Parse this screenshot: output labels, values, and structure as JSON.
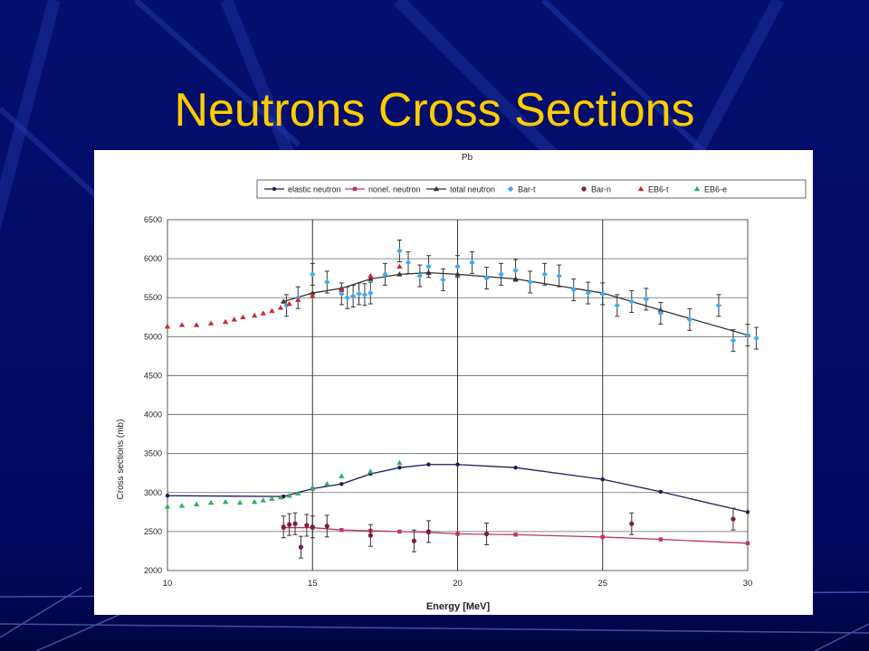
{
  "slide": {
    "title": "Neutrons Cross Sections"
  },
  "chart_data": {
    "type": "scatter",
    "title": "Pb",
    "xlabel": "Energy [MeV]",
    "ylabel": "Cross sections (mb)",
    "xlim": [
      10,
      30
    ],
    "ylim": [
      2000,
      6500
    ],
    "x_ticks": [
      10,
      15,
      20,
      25,
      30
    ],
    "y_ticks": [
      2000,
      2500,
      3000,
      3500,
      4000,
      4500,
      5000,
      5500,
      6000,
      6500
    ],
    "grid": true,
    "legend_position": "top",
    "series": [
      {
        "name": "elastic neutron",
        "kind": "line",
        "marker": "circle",
        "color": "#1a1a5a",
        "x": [
          10,
          14,
          15,
          16,
          17,
          18,
          19,
          20,
          22,
          25,
          27,
          30
        ],
        "y": [
          2960,
          2950,
          3050,
          3110,
          3240,
          3320,
          3360,
          3360,
          3320,
          3170,
          3010,
          2750
        ]
      },
      {
        "name": "nonel. neutron",
        "kind": "line",
        "marker": "square",
        "color": "#c03070",
        "x": [
          14,
          15,
          16,
          17,
          18,
          19,
          20,
          22,
          25,
          27,
          30
        ],
        "y": [
          2550,
          2550,
          2520,
          2510,
          2500,
          2490,
          2470,
          2460,
          2430,
          2400,
          2350
        ]
      },
      {
        "name": "total neutron",
        "kind": "line",
        "marker": "triangle",
        "color": "#333333",
        "x": [
          14,
          15,
          16,
          17,
          18,
          19,
          20,
          22,
          25,
          27,
          30
        ],
        "y": [
          5450,
          5560,
          5620,
          5740,
          5800,
          5820,
          5800,
          5740,
          5560,
          5340,
          5020
        ]
      },
      {
        "name": "Bar-t",
        "kind": "points",
        "marker": "diamond",
        "color": "#44aaee",
        "x": [
          14.1,
          14.5,
          15,
          15.5,
          16,
          16.2,
          16.4,
          16.6,
          16.8,
          17,
          17.5,
          18,
          18.3,
          18.7,
          19,
          19.5,
          20,
          20.5,
          21,
          21.5,
          22,
          22.5,
          23,
          23.5,
          24,
          24.5,
          25,
          25.5,
          26,
          26.5,
          27,
          28,
          29,
          29.5,
          30,
          30.3
        ],
        "y": [
          5400,
          5500,
          5800,
          5700,
          5550,
          5500,
          5520,
          5550,
          5540,
          5560,
          5800,
          6100,
          5950,
          5780,
          5900,
          5730,
          5900,
          5950,
          5750,
          5800,
          5850,
          5700,
          5800,
          5780,
          5600,
          5560,
          5550,
          5400,
          5450,
          5480,
          5300,
          5220,
          5400,
          4950,
          5020,
          4980
        ]
      },
      {
        "name": "Bar-n",
        "kind": "points",
        "marker": "dot",
        "color": "#7a2030",
        "x": [
          14,
          14.2,
          14.4,
          14.6,
          14.8,
          15,
          15.5,
          17,
          18.5,
          19,
          21,
          26,
          29.5
        ],
        "y": [
          2560,
          2590,
          2600,
          2300,
          2580,
          2560,
          2570,
          2450,
          2380,
          2500,
          2470,
          2600,
          2660
        ]
      },
      {
        "name": "EB6-t",
        "kind": "points",
        "marker": "triangle",
        "color": "#cc2a2a",
        "x": [
          10,
          10.5,
          11,
          11.5,
          12,
          12.3,
          12.6,
          13,
          13.3,
          13.6,
          13.9,
          14.2,
          14.5,
          15,
          16,
          17,
          18
        ],
        "y": [
          5130,
          5150,
          5150,
          5170,
          5190,
          5220,
          5250,
          5270,
          5300,
          5330,
          5370,
          5420,
          5470,
          5520,
          5600,
          5780,
          5900
        ]
      },
      {
        "name": "EB6-e",
        "kind": "points",
        "marker": "triangle",
        "color": "#33aa66",
        "x": [
          10,
          10.5,
          11,
          11.5,
          12,
          12.5,
          13,
          13.3,
          13.6,
          13.9,
          14.2,
          14.5,
          15,
          15.5,
          16,
          17,
          18
        ],
        "y": [
          2820,
          2830,
          2850,
          2870,
          2880,
          2870,
          2880,
          2900,
          2920,
          2940,
          2960,
          2990,
          3050,
          3110,
          3210,
          3270,
          3380
        ]
      }
    ]
  }
}
